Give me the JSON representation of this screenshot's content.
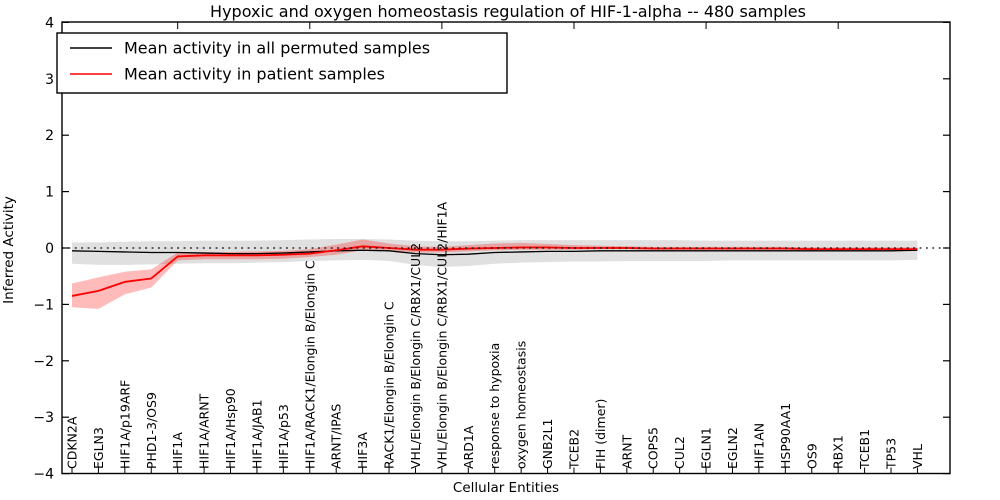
{
  "figure": {
    "title": "Hypoxic and oxygen homeostasis regulation of HIF-1-alpha -- 480 samples",
    "xlabel": "Cellular Entities",
    "ylabel": "Inferred Activity"
  },
  "legend": {
    "entries": [
      {
        "label": "Mean activity in all permuted samples",
        "color": "#000000"
      },
      {
        "label": "Mean activity in patient samples",
        "color": "#ff0000"
      }
    ]
  },
  "chart_data": {
    "type": "line",
    "title": "Hypoxic and oxygen homeostasis regulation of HIF-1-alpha -- 480 samples",
    "xlabel": "Cellular Entities",
    "ylabel": "Inferred Activity",
    "ylim": [
      -4,
      4
    ],
    "yticks": [
      -4,
      -3,
      -2,
      -1,
      0,
      1,
      2,
      3,
      4
    ],
    "grid": false,
    "zero_line_style": "dotted",
    "legend_position": "upper left",
    "categories": [
      "CDKN2A",
      "EGLN3",
      "HIF1A/p19ARF",
      "PHD1-3/OS9",
      "HIF1A",
      "HIF1A/ARNT",
      "HIF1A/Hsp90",
      "HIF1A/JAB1",
      "HIF1A/p53",
      "HIF1A/RACK1/Elongin B/Elongin C",
      "ARNT/IPAS",
      "HIF3A",
      "RACK1/Elongin B/Elongin C",
      "VHL/Elongin B/Elongin C/RBX1/CUL2",
      "VHL/Elongin B/Elongin C/RBX1/CUL2/HIF1A",
      "ARD1A",
      "response to hypoxia",
      "oxygen homeostasis",
      "GNB2L1",
      "TCEB2",
      "FIH (dimer)",
      "ARNT",
      "COPS5",
      "CUL2",
      "EGLN1",
      "EGLN2",
      "HIF1AN",
      "HSP90AA1",
      "OS9",
      "RBX1",
      "TCEB1",
      "TP53",
      "VHL"
    ],
    "series": [
      {
        "name": "Mean activity in all permuted samples",
        "color": "#000000",
        "band_color": "rgba(0,0,0,0.12)",
        "values": [
          -0.05,
          -0.06,
          -0.07,
          -0.08,
          -0.08,
          -0.09,
          -0.1,
          -0.1,
          -0.09,
          -0.07,
          -0.05,
          -0.04,
          -0.05,
          -0.1,
          -0.12,
          -0.11,
          -0.08,
          -0.07,
          -0.06,
          -0.06,
          -0.05,
          -0.05,
          -0.05,
          -0.05,
          -0.05,
          -0.05,
          -0.05,
          -0.05,
          -0.05,
          -0.05,
          -0.05,
          -0.05,
          -0.04
        ],
        "band_low": [
          -0.28,
          -0.3,
          -0.3,
          -0.29,
          -0.28,
          -0.27,
          -0.27,
          -0.26,
          -0.25,
          -0.23,
          -0.22,
          -0.21,
          -0.23,
          -0.3,
          -0.34,
          -0.32,
          -0.28,
          -0.26,
          -0.25,
          -0.24,
          -0.24,
          -0.23,
          -0.23,
          -0.23,
          -0.23,
          -0.22,
          -0.22,
          -0.22,
          -0.22,
          -0.22,
          -0.22,
          -0.22,
          -0.21
        ],
        "band_high": [
          0.1,
          0.1,
          0.11,
          0.12,
          0.12,
          0.13,
          0.13,
          0.13,
          0.14,
          0.15,
          0.16,
          0.16,
          0.15,
          0.13,
          0.12,
          0.12,
          0.13,
          0.14,
          0.14,
          0.14,
          0.14,
          0.14,
          0.14,
          0.14,
          0.13,
          0.13,
          0.13,
          0.13,
          0.13,
          0.13,
          0.13,
          0.13,
          0.13
        ]
      },
      {
        "name": "Mean activity in patient samples",
        "color": "#ff0000",
        "band_color": "rgba(255,0,0,0.27)",
        "values": [
          -0.85,
          -0.76,
          -0.6,
          -0.54,
          -0.15,
          -0.13,
          -0.13,
          -0.13,
          -0.12,
          -0.1,
          -0.04,
          0.03,
          0.0,
          -0.03,
          -0.03,
          -0.01,
          0.0,
          0.01,
          0.01,
          0.0,
          0.0,
          0.0,
          -0.01,
          -0.01,
          -0.01,
          -0.01,
          -0.01,
          -0.01,
          -0.02,
          -0.02,
          -0.02,
          -0.02,
          -0.02
        ],
        "band_low": [
          -1.05,
          -1.08,
          -0.82,
          -0.7,
          -0.22,
          -0.2,
          -0.2,
          -0.2,
          -0.19,
          -0.16,
          -0.12,
          -0.04,
          -0.06,
          -0.08,
          -0.08,
          -0.06,
          -0.04,
          -0.03,
          -0.03,
          -0.03,
          -0.02,
          -0.02,
          -0.03,
          -0.03,
          -0.03,
          -0.03,
          -0.03,
          -0.03,
          -0.04,
          -0.04,
          -0.04,
          -0.04,
          -0.04
        ],
        "band_high": [
          -0.63,
          -0.52,
          -0.42,
          -0.38,
          -0.08,
          -0.07,
          -0.07,
          -0.06,
          -0.05,
          -0.02,
          0.06,
          0.15,
          0.08,
          0.03,
          0.02,
          0.05,
          0.08,
          0.09,
          0.07,
          0.05,
          0.04,
          0.03,
          0.02,
          0.02,
          0.02,
          0.02,
          0.02,
          0.02,
          0.01,
          0.01,
          0.01,
          0.01,
          0.01
        ]
      }
    ],
    "top_tick_indices": [
      4,
      9,
      14,
      19,
      24,
      29
    ]
  }
}
